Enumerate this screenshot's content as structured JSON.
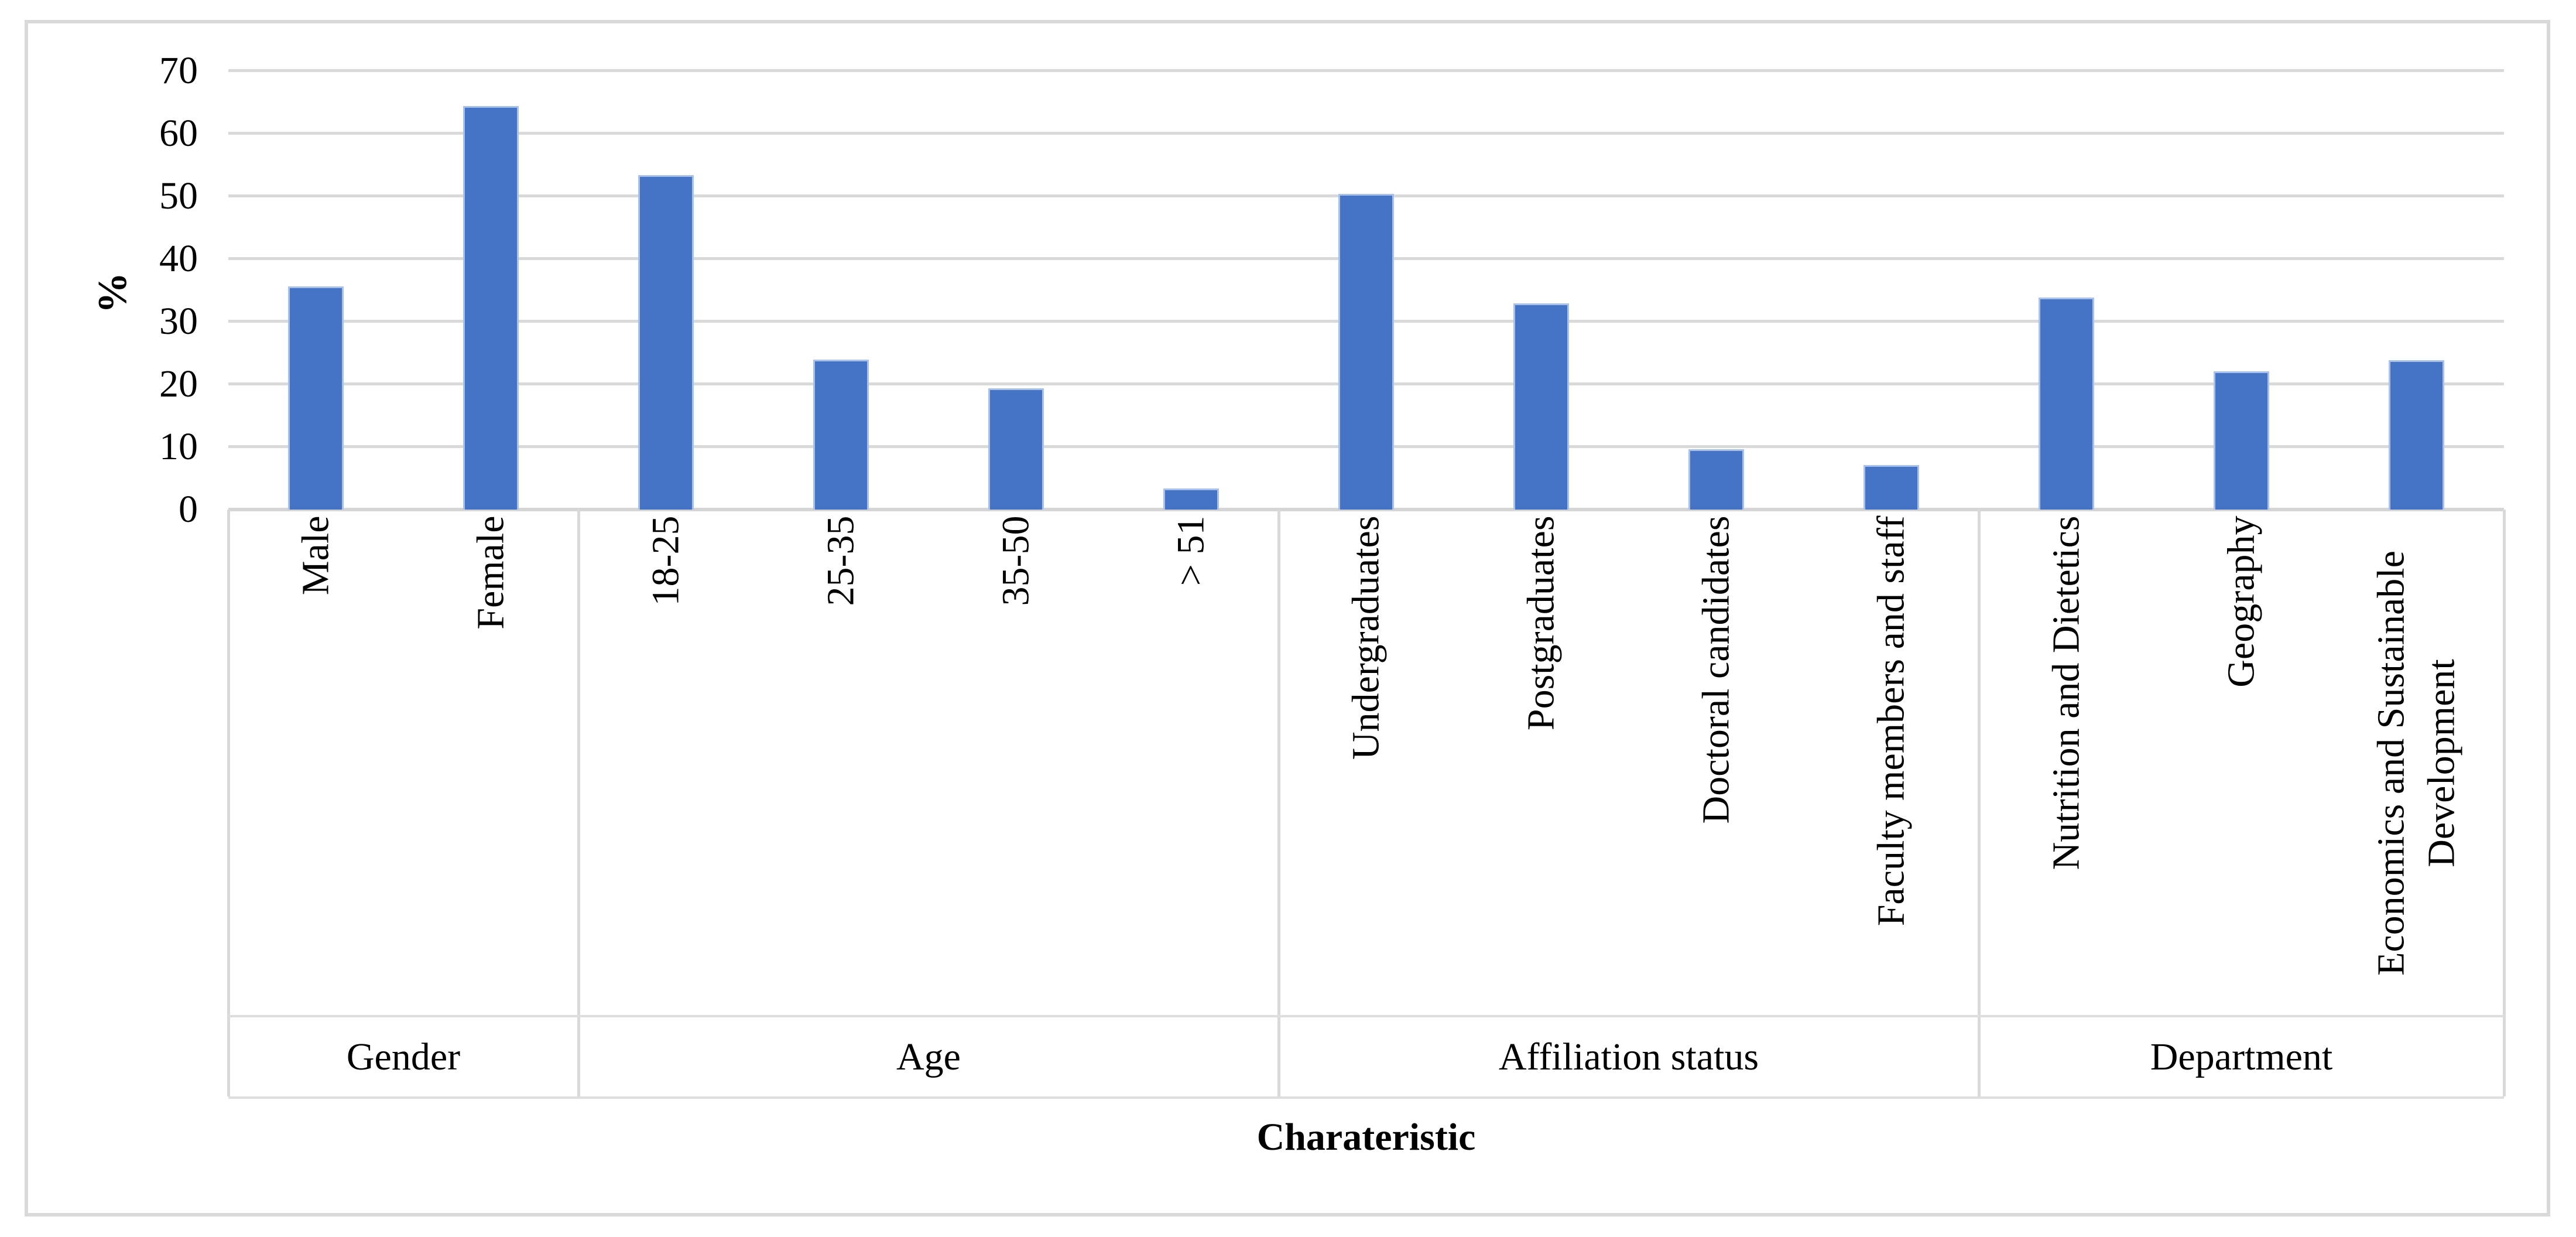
{
  "figure": {
    "background": "#FFFFFF",
    "border_color": "#D9D9D9"
  },
  "chart_data": {
    "type": "bar",
    "title": "",
    "ylabel": "%",
    "xlabel": "Charateristic",
    "ylim": [
      0,
      70
    ],
    "yticks": [
      0,
      10,
      20,
      30,
      40,
      50,
      60,
      70
    ],
    "grid": "horizontal",
    "legend": "none",
    "bar_color": "#4472C4",
    "bar_edge_color": "#A9C1E8",
    "gridline_color": "#D9D9D9",
    "groups": [
      {
        "label": "Gender",
        "categories": [
          "Male",
          "Female"
        ],
        "values": [
          35.6,
          64.4
        ]
      },
      {
        "label": "Age",
        "categories": [
          "18-25",
          "25-35",
          "35-50",
          "> 51"
        ],
        "values": [
          53.4,
          23.9,
          19.3,
          3.4
        ]
      },
      {
        "label": "Affiliation status",
        "categories": [
          "Undergraduates",
          "Postgraduates",
          "Doctoral candidates",
          "Faculty members and staff"
        ],
        "values": [
          50.4,
          32.9,
          9.6,
          7.1
        ]
      },
      {
        "label": "Department",
        "categories": [
          "Nutrition and Dietetics",
          "Geography",
          "Economics and Sustainable Development"
        ],
        "values": [
          33.8,
          22.1,
          23.8
        ]
      }
    ]
  }
}
